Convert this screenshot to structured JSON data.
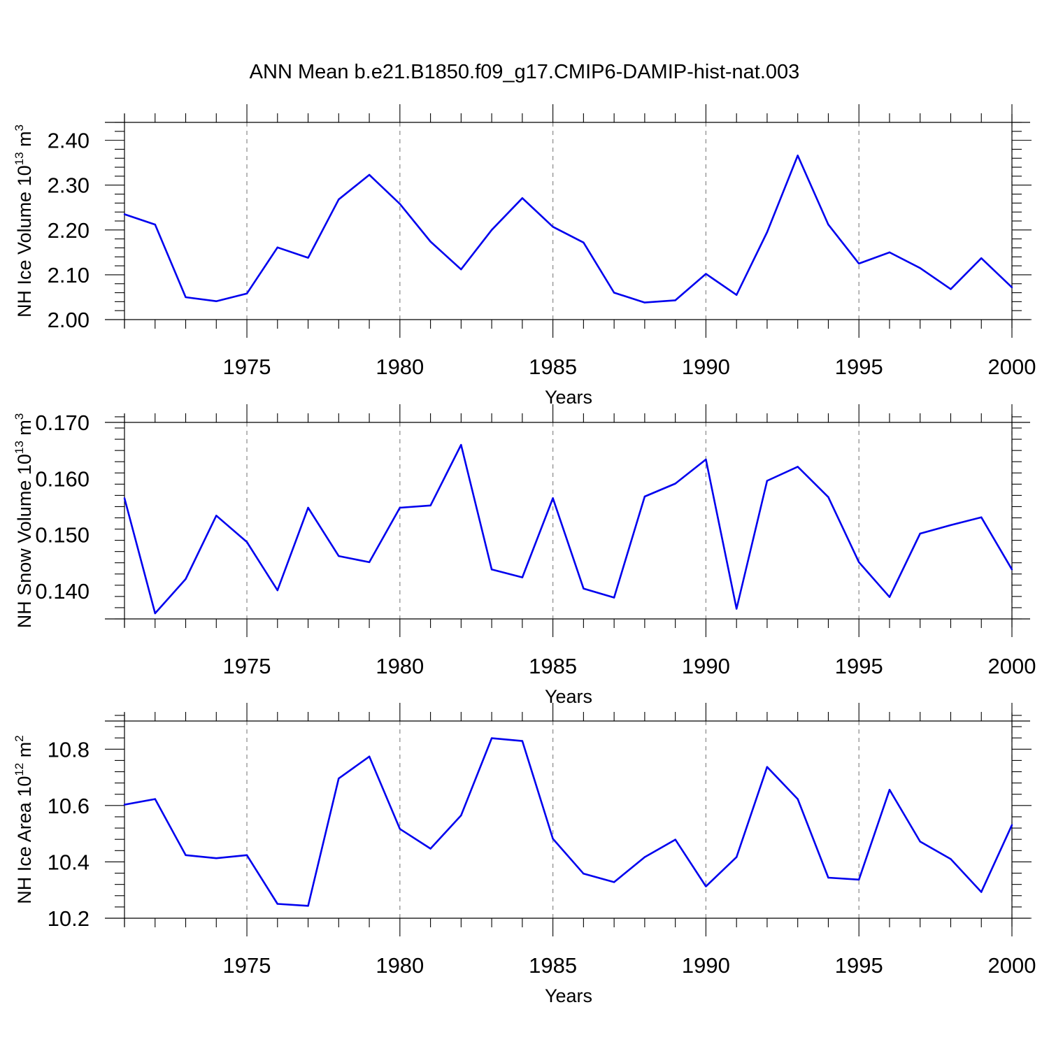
{
  "title": "ANN Mean b.e21.B1850.f09_g17.CMIP6-DAMIP-hist-nat.003",
  "line_color": "#0000ee",
  "grid_color": "#888888",
  "chart_data": [
    {
      "type": "line",
      "ylabel": "NH Ice Volume 10",
      "ylabel_sup": "13",
      "ylabel_unit": "m",
      "ylabel_unit_sup": "3",
      "xlabel": "Years",
      "xlim": [
        1971,
        2000
      ],
      "ylim": [
        2.0,
        2.44
      ],
      "y_ticks": [
        2.0,
        2.1,
        2.2,
        2.3,
        2.4
      ],
      "y_tick_labels": [
        "2.00",
        "2.10",
        "2.20",
        "2.30",
        "2.40"
      ],
      "y_minor_step": 0.02,
      "x_ticks": [
        1975,
        1980,
        1985,
        1990,
        1995,
        2000
      ],
      "x_tick_labels": [
        "1975",
        "1980",
        "1985",
        "1990",
        "1995",
        "2000"
      ],
      "grid": "vertical dashed at major x ticks",
      "x": [
        1971,
        1972,
        1973,
        1974,
        1975,
        1976,
        1977,
        1978,
        1979,
        1980,
        1981,
        1982,
        1983,
        1984,
        1985,
        1986,
        1987,
        1988,
        1989,
        1990,
        1991,
        1992,
        1993,
        1994,
        1995,
        1996,
        1997,
        1998,
        1999,
        2000
      ],
      "values": [
        2.235,
        2.212,
        2.05,
        2.041,
        2.058,
        2.161,
        2.138,
        2.268,
        2.323,
        2.258,
        2.174,
        2.112,
        2.2,
        2.271,
        2.207,
        2.172,
        2.06,
        2.038,
        2.043,
        2.102,
        2.055,
        2.195,
        2.366,
        2.212,
        2.125,
        2.15,
        2.115,
        2.068,
        2.137,
        2.072
      ]
    },
    {
      "type": "line",
      "ylabel": "NH Snow Volume 10",
      "ylabel_sup": "13",
      "ylabel_unit": "m",
      "ylabel_unit_sup": "3",
      "xlabel": "Years",
      "xlim": [
        1971,
        2000
      ],
      "ylim": [
        0.135,
        0.17
      ],
      "y_ticks": [
        0.14,
        0.15,
        0.16,
        0.17
      ],
      "y_tick_labels": [
        "0.140",
        "0.150",
        "0.160",
        "0.170"
      ],
      "y_minor_step": 0.002,
      "x_ticks": [
        1975,
        1980,
        1985,
        1990,
        1995,
        2000
      ],
      "x_tick_labels": [
        "1975",
        "1980",
        "1985",
        "1990",
        "1995",
        "2000"
      ],
      "grid": "vertical dashed at major x ticks",
      "x": [
        1971,
        1972,
        1973,
        1974,
        1975,
        1976,
        1977,
        1978,
        1979,
        1980,
        1981,
        1982,
        1983,
        1984,
        1985,
        1986,
        1987,
        1988,
        1989,
        1990,
        1991,
        1992,
        1993,
        1994,
        1995,
        1996,
        1997,
        1998,
        1999,
        2000
      ],
      "values": [
        0.1565,
        0.136,
        0.1421,
        0.1534,
        0.1487,
        0.1401,
        0.1548,
        0.1462,
        0.1451,
        0.1548,
        0.1552,
        0.166,
        0.1438,
        0.1424,
        0.1565,
        0.1404,
        0.1388,
        0.1568,
        0.1591,
        0.1634,
        0.1368,
        0.1596,
        0.1621,
        0.1567,
        0.1451,
        0.1389,
        0.1502,
        0.1517,
        0.1531,
        0.1438
      ]
    },
    {
      "type": "line",
      "ylabel": "NH Ice Area 10",
      "ylabel_sup": "12",
      "ylabel_unit": "m",
      "ylabel_unit_sup": "2",
      "xlabel": "Years",
      "xlim": [
        1971,
        2000
      ],
      "ylim": [
        10.2,
        10.9
      ],
      "y_ticks": [
        10.2,
        10.4,
        10.6,
        10.8
      ],
      "y_tick_labels": [
        "10.2",
        "10.4",
        "10.6",
        "10.8"
      ],
      "y_minor_step": 0.04,
      "x_ticks": [
        1975,
        1980,
        1985,
        1990,
        1995,
        2000
      ],
      "x_tick_labels": [
        "1975",
        "1980",
        "1985",
        "1990",
        "1995",
        "2000"
      ],
      "grid": "vertical dashed at major x ticks",
      "x": [
        1971,
        1972,
        1973,
        1974,
        1975,
        1976,
        1977,
        1978,
        1979,
        1980,
        1981,
        1982,
        1983,
        1984,
        1985,
        1986,
        1987,
        1988,
        1989,
        1990,
        1991,
        1992,
        1993,
        1994,
        1995,
        1996,
        1997,
        1998,
        1999,
        2000
      ],
      "values": [
        10.603,
        10.623,
        10.424,
        10.413,
        10.424,
        10.251,
        10.244,
        10.696,
        10.774,
        10.517,
        10.447,
        10.565,
        10.839,
        10.829,
        10.482,
        10.358,
        10.328,
        10.417,
        10.479,
        10.313,
        10.417,
        10.737,
        10.623,
        10.344,
        10.337,
        10.656,
        10.472,
        10.41,
        10.293,
        10.531
      ]
    }
  ]
}
